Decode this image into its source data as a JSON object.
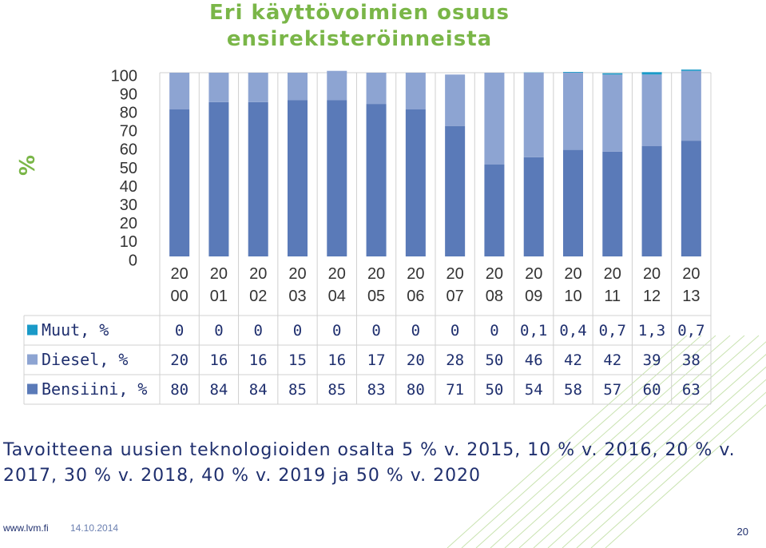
{
  "chart_data": {
    "type": "bar",
    "stacked": true,
    "title": "Eri käyttövoimien osuus ensirekisteröinneista",
    "ylabel": "%",
    "ylim": [
      0,
      100
    ],
    "yticks": [
      "100",
      "90",
      "80",
      "70",
      "60",
      "50",
      "40",
      "30",
      "20",
      "10",
      "0"
    ],
    "categories": [
      [
        "20",
        "00"
      ],
      [
        "20",
        "01"
      ],
      [
        "20",
        "02"
      ],
      [
        "20",
        "03"
      ],
      [
        "20",
        "04"
      ],
      [
        "20",
        "05"
      ],
      [
        "20",
        "06"
      ],
      [
        "20",
        "07"
      ],
      [
        "20",
        "08"
      ],
      [
        "20",
        "09"
      ],
      [
        "20",
        "10"
      ],
      [
        "20",
        "11"
      ],
      [
        "20",
        "12"
      ],
      [
        "20",
        "13"
      ]
    ],
    "series": [
      {
        "name": "Muut, %",
        "color": "#1A9AC8",
        "labels": [
          "0",
          "0",
          "0",
          "0",
          "0",
          "0",
          "0",
          "0",
          "0",
          "0,1",
          "0,4",
          "0,7",
          "1,3",
          "0,7"
        ],
        "values": [
          0,
          0,
          0,
          0,
          0,
          0,
          0,
          0,
          0,
          0.1,
          0.4,
          0.7,
          1.3,
          0.7
        ]
      },
      {
        "name": "Diesel, %",
        "color": "#8DA4D2",
        "labels": [
          "20",
          "16",
          "16",
          "15",
          "16",
          "17",
          "20",
          "28",
          "50",
          "46",
          "42",
          "42",
          "39",
          "38"
        ],
        "values": [
          20,
          16,
          16,
          15,
          16,
          17,
          20,
          28,
          50,
          46,
          42,
          42,
          39,
          38
        ]
      },
      {
        "name": "Bensiini, %",
        "color": "#5A7AB8",
        "labels": [
          "80",
          "84",
          "84",
          "85",
          "85",
          "83",
          "80",
          "71",
          "50",
          "54",
          "58",
          "57",
          "60",
          "63"
        ],
        "values": [
          80,
          84,
          84,
          85,
          85,
          83,
          80,
          71,
          50,
          54,
          58,
          57,
          60,
          63
        ]
      }
    ],
    "grid": true
  },
  "footnote": "Tavoitteena uusien teknologioiden osalta 5 % v. 2015, 10 % v. 2016, 20 % v. 2017, 30 % v. 2018, 40 % v. 2019 ja 50 % v. 2020",
  "footer": {
    "url": "www.lvm.fi",
    "date": "14.10.2014",
    "page": "20"
  }
}
